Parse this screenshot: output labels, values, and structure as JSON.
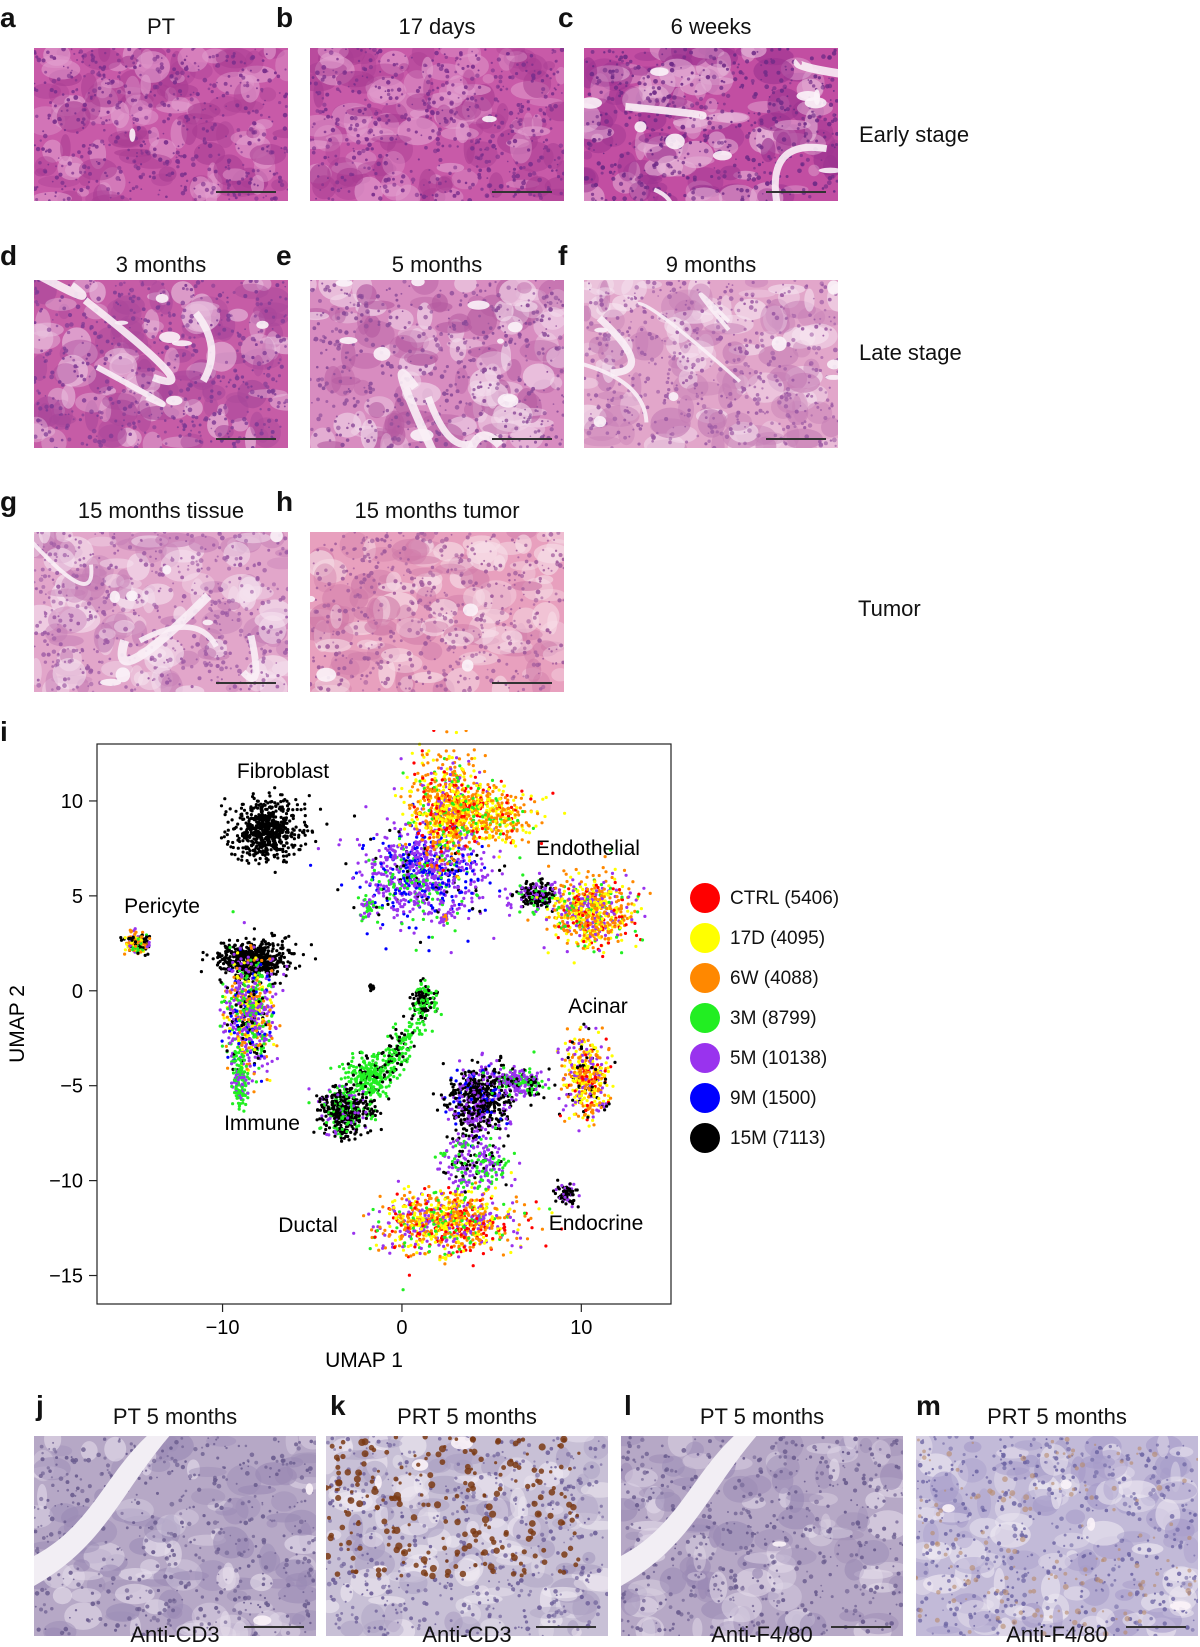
{
  "he_panels": [
    {
      "letter": "a",
      "title": "PT",
      "style": "dense"
    },
    {
      "letter": "b",
      "title": "17 days",
      "style": "dense"
    },
    {
      "letter": "c",
      "title": "6 weeks",
      "style": "lobular"
    },
    {
      "letter": "d",
      "title": "3 months",
      "style": "mixed"
    },
    {
      "letter": "e",
      "title": "5 months",
      "style": "ductal"
    },
    {
      "letter": "f",
      "title": "9 months",
      "style": "fibrotic"
    },
    {
      "letter": "g",
      "title": "15 months tissue",
      "style": "fibrotic"
    },
    {
      "letter": "h",
      "title": "15 months tumor",
      "style": "tumor"
    }
  ],
  "stage_labels": [
    "Early stage",
    "Late stage",
    "Tumor"
  ],
  "umap": {
    "panel_letter": "i",
    "xlabel": "UMAP 1",
    "ylabel": "UMAP 2",
    "xticks": [
      "−10",
      "0",
      "10"
    ],
    "yticks": [
      "10",
      "5",
      "0",
      "−5",
      "−10",
      "−15"
    ],
    "cluster_labels": [
      "Fibroblast",
      "Endothelial",
      "Pericyte",
      "Acinar",
      "Immune",
      "Ductal",
      "Endocrine"
    ]
  },
  "chart_data": {
    "type": "scatter",
    "xlabel": "UMAP 1",
    "ylabel": "UMAP 2",
    "xlim": [
      -17,
      15
    ],
    "ylim": [
      -16.5,
      13
    ],
    "series": [
      {
        "name": "CTRL",
        "count": "(5406)",
        "color": "#ff0000"
      },
      {
        "name": "17D",
        "count": "(4095)",
        "color": "#ffff00"
      },
      {
        "name": "6W",
        "count": "(4088)",
        "color": "#ff8800"
      },
      {
        "name": "3M",
        "count": "(8799)",
        "color": "#22ee22"
      },
      {
        "name": "5M",
        "count": "(10138)",
        "color": "#9933ee"
      },
      {
        "name": "9M",
        "count": "(1500)",
        "color": "#0000ff"
      },
      {
        "name": "15M",
        "count": "(7113)",
        "color": "#000000"
      }
    ],
    "clusters": [
      {
        "label": "Fibroblast",
        "center": [
          1.5,
          7.5
        ]
      },
      {
        "label": "Endothelial",
        "center": [
          9,
          4.5
        ]
      },
      {
        "label": "Pericyte",
        "center": [
          -14.8,
          2.5
        ]
      },
      {
        "label": "Acinar",
        "center": [
          9,
          -4.5
        ]
      },
      {
        "label": "Immune",
        "center": [
          -8,
          -1
        ]
      },
      {
        "label": "Ductal",
        "center": [
          2,
          -12.5
        ]
      },
      {
        "label": "Endocrine",
        "center": [
          9,
          -11
        ]
      }
    ]
  },
  "ihc_panels": [
    {
      "letter": "j",
      "title": "PT 5 months",
      "caption": "Anti-CD3",
      "style": "plain"
    },
    {
      "letter": "k",
      "title": "PRT 5 months",
      "caption": "Anti-CD3",
      "style": "cd3"
    },
    {
      "letter": "l",
      "title": "PT 5 months",
      "caption": "Anti-F4/80",
      "style": "plain"
    },
    {
      "letter": "m",
      "title": "PRT 5 months",
      "caption": "Anti-F4/80",
      "style": "f480"
    }
  ]
}
